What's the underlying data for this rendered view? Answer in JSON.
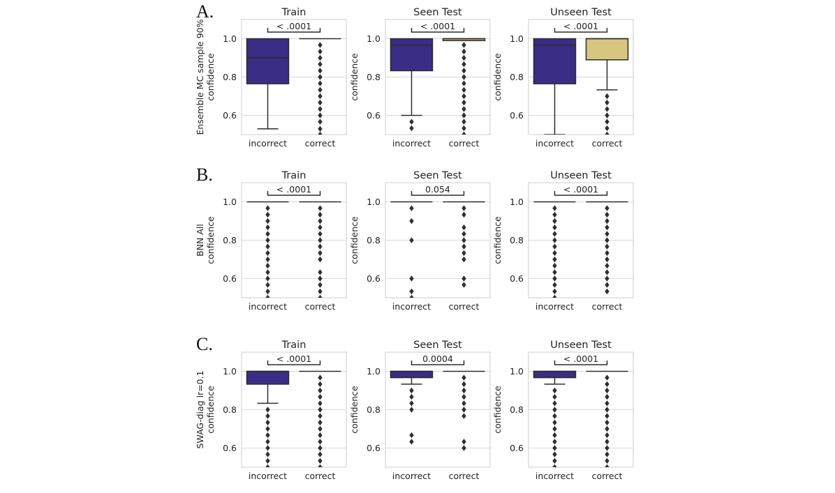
{
  "chart_data": {
    "type": "boxplot",
    "figure": "Confidence of incorrect vs correct predictions",
    "categories": [
      "incorrect",
      "correct"
    ],
    "ylim": [
      0.5,
      1.1
    ],
    "yticks": [
      0.6,
      0.8,
      1.0
    ],
    "ytick_labels": [
      "0.6",
      "0.8",
      "1.0"
    ],
    "colors": {
      "incorrect": "#3a2d85",
      "correct": "#d6c67f",
      "line": "#2b2b2b",
      "grid": "#d9d9d9",
      "frame": "#cccccc"
    },
    "rows": [
      {
        "label": "A.",
        "ylabel_lines": [
          "Ensemble MC sample 90%",
          "confidence"
        ],
        "panels": [
          {
            "title": "Train",
            "pvalue": "< .0001",
            "boxes": [
              {
                "category": "incorrect",
                "q1": 0.765,
                "median": 0.9,
                "q3": 1.0,
                "whisker_low": 0.53,
                "whisker_high": 1.0,
                "outliers": []
              },
              {
                "category": "correct",
                "q1": 1.0,
                "median": 1.0,
                "q3": 1.0,
                "whisker_low": 1.0,
                "whisker_high": 1.0,
                "outliers": [
                  0.5,
                  0.53,
                  0.567,
                  0.6,
                  0.633,
                  0.667,
                  0.7,
                  0.733,
                  0.767,
                  0.8,
                  0.833,
                  0.867,
                  0.9,
                  0.933,
                  0.967
                ]
              }
            ]
          },
          {
            "title": "Seen Test",
            "pvalue": "< .0001",
            "ylabel_lines": [
              "confidence"
            ],
            "boxes": [
              {
                "category": "incorrect",
                "q1": 0.833,
                "median": 0.967,
                "q3": 1.0,
                "whisker_low": 0.6,
                "whisker_high": 1.0,
                "outliers": [
                  0.533,
                  0.567
                ]
              },
              {
                "category": "correct",
                "q1": 0.99,
                "median": 1.0,
                "q3": 1.0,
                "whisker_low": 0.99,
                "whisker_high": 1.0,
                "outliers": [
                  0.5,
                  0.533,
                  0.567,
                  0.6,
                  0.633,
                  0.667,
                  0.7,
                  0.733,
                  0.767,
                  0.8,
                  0.833,
                  0.867,
                  0.9,
                  0.933,
                  0.967
                ]
              }
            ]
          },
          {
            "title": "Unseen Test",
            "pvalue": "< .0001",
            "ylabel_lines": [
              "confidence"
            ],
            "boxes": [
              {
                "category": "incorrect",
                "q1": 0.765,
                "median": 0.967,
                "q3": 1.0,
                "whisker_low": 0.5,
                "whisker_high": 1.0,
                "outliers": []
              },
              {
                "category": "correct",
                "q1": 0.89,
                "median": 1.0,
                "q3": 1.0,
                "whisker_low": 0.733,
                "whisker_high": 1.0,
                "outliers": [
                  0.5,
                  0.533,
                  0.567,
                  0.6,
                  0.633,
                  0.667,
                  0.7
                ]
              }
            ]
          }
        ]
      },
      {
        "label": "B.",
        "ylabel_lines": [
          "BNN All",
          "confidence"
        ],
        "panels": [
          {
            "title": "Train",
            "pvalue": "< .0001",
            "boxes": [
              {
                "category": "incorrect",
                "q1": 1.0,
                "median": 1.0,
                "q3": 1.0,
                "whisker_low": 1.0,
                "whisker_high": 1.0,
                "outliers": [
                  0.5,
                  0.533,
                  0.567,
                  0.6,
                  0.633,
                  0.667,
                  0.7,
                  0.733,
                  0.767,
                  0.8,
                  0.833,
                  0.867,
                  0.9,
                  0.933,
                  0.967
                ]
              },
              {
                "category": "correct",
                "q1": 1.0,
                "median": 1.0,
                "q3": 1.0,
                "whisker_low": 1.0,
                "whisker_high": 1.0,
                "outliers": [
                  0.5,
                  0.533,
                  0.567,
                  0.6,
                  0.633,
                  0.7,
                  0.733,
                  0.767,
                  0.8,
                  0.833,
                  0.867,
                  0.9,
                  0.933,
                  0.967
                ]
              }
            ]
          },
          {
            "title": "Seen Test",
            "pvalue": "0.054",
            "ylabel_lines": [
              "confidence"
            ],
            "boxes": [
              {
                "category": "incorrect",
                "q1": 1.0,
                "median": 1.0,
                "q3": 1.0,
                "whisker_low": 1.0,
                "whisker_high": 1.0,
                "outliers": [
                  0.5,
                  0.533,
                  0.6,
                  0.8,
                  0.9,
                  0.967
                ]
              },
              {
                "category": "correct",
                "q1": 1.0,
                "median": 1.0,
                "q3": 1.0,
                "whisker_low": 1.0,
                "whisker_high": 1.0,
                "outliers": [
                  0.567,
                  0.6,
                  0.7,
                  0.733,
                  0.767,
                  0.8,
                  0.833,
                  0.867,
                  0.933,
                  0.967
                ]
              }
            ]
          },
          {
            "title": "Unseen Test",
            "pvalue": "< .0001",
            "ylabel_lines": [
              "confidence"
            ],
            "boxes": [
              {
                "category": "incorrect",
                "q1": 1.0,
                "median": 1.0,
                "q3": 1.0,
                "whisker_low": 1.0,
                "whisker_high": 1.0,
                "outliers": [
                  0.5,
                  0.533,
                  0.567,
                  0.6,
                  0.633,
                  0.667,
                  0.7,
                  0.733,
                  0.767,
                  0.8,
                  0.833,
                  0.867,
                  0.9,
                  0.933,
                  0.967
                ]
              },
              {
                "category": "correct",
                "q1": 1.0,
                "median": 1.0,
                "q3": 1.0,
                "whisker_low": 1.0,
                "whisker_high": 1.0,
                "outliers": [
                  0.533,
                  0.567,
                  0.6,
                  0.633,
                  0.667,
                  0.7,
                  0.733,
                  0.767,
                  0.8,
                  0.833,
                  0.867,
                  0.9,
                  0.933,
                  0.967
                ]
              }
            ]
          }
        ]
      },
      {
        "label": "C.",
        "ylabel_lines": [
          "SWAG-diag lr=0.1",
          "confidence"
        ],
        "panels": [
          {
            "title": "Train",
            "pvalue": "< .0001",
            "boxes": [
              {
                "category": "incorrect",
                "q1": 0.933,
                "median": 1.0,
                "q3": 1.0,
                "whisker_low": 0.833,
                "whisker_high": 1.0,
                "outliers": [
                  0.5,
                  0.533,
                  0.567,
                  0.6,
                  0.633,
                  0.667,
                  0.7,
                  0.733,
                  0.767,
                  0.8
                ]
              },
              {
                "category": "correct",
                "q1": 1.0,
                "median": 1.0,
                "q3": 1.0,
                "whisker_low": 1.0,
                "whisker_high": 1.0,
                "outliers": [
                  0.5,
                  0.533,
                  0.567,
                  0.6,
                  0.633,
                  0.667,
                  0.7,
                  0.733,
                  0.767,
                  0.8,
                  0.833,
                  0.867,
                  0.9,
                  0.933,
                  0.967
                ]
              }
            ]
          },
          {
            "title": "Seen Test",
            "pvalue": "0.0004",
            "ylabel_lines": [
              "confidence"
            ],
            "boxes": [
              {
                "category": "incorrect",
                "q1": 0.967,
                "median": 1.0,
                "q3": 1.0,
                "whisker_low": 0.933,
                "whisker_high": 1.0,
                "outliers": [
                  0.633,
                  0.667,
                  0.8,
                  0.833,
                  0.867,
                  0.9
                ]
              },
              {
                "category": "correct",
                "q1": 1.0,
                "median": 1.0,
                "q3": 1.0,
                "whisker_low": 1.0,
                "whisker_high": 1.0,
                "outliers": [
                  0.6,
                  0.633,
                  0.767,
                  0.8,
                  0.833,
                  0.867,
                  0.9,
                  0.933,
                  0.967
                ]
              }
            ]
          },
          {
            "title": "Unseen Test",
            "pvalue": "< .0001",
            "ylabel_lines": [
              "confidence"
            ],
            "boxes": [
              {
                "category": "incorrect",
                "q1": 0.967,
                "median": 1.0,
                "q3": 1.0,
                "whisker_low": 0.933,
                "whisker_high": 1.0,
                "outliers": [
                  0.5,
                  0.533,
                  0.567,
                  0.6,
                  0.633,
                  0.667,
                  0.7,
                  0.733,
                  0.767,
                  0.8,
                  0.833,
                  0.867,
                  0.9
                ]
              },
              {
                "category": "correct",
                "q1": 1.0,
                "median": 1.0,
                "q3": 1.0,
                "whisker_low": 1.0,
                "whisker_high": 1.0,
                "outliers": [
                  0.5,
                  0.533,
                  0.567,
                  0.6,
                  0.633,
                  0.667,
                  0.7,
                  0.733,
                  0.767,
                  0.8,
                  0.833,
                  0.867,
                  0.9,
                  0.933,
                  0.967
                ]
              }
            ]
          }
        ]
      }
    ]
  }
}
